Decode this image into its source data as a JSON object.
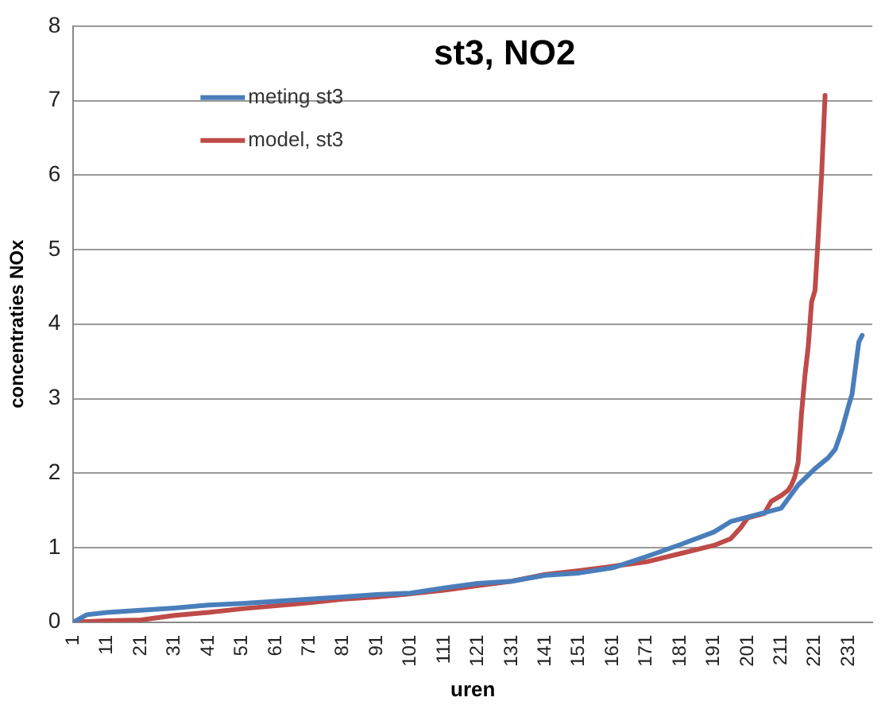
{
  "chart_data": {
    "type": "line",
    "title": "st3, NO2",
    "xlabel": "uren",
    "ylabel": "concentraties NOx",
    "xlim": [
      1,
      238
    ],
    "xticks": [
      1,
      11,
      21,
      31,
      41,
      51,
      61,
      71,
      81,
      91,
      101,
      111,
      121,
      131,
      141,
      151,
      161,
      171,
      181,
      191,
      201,
      211,
      221,
      231
    ],
    "ylim": [
      0,
      8
    ],
    "yticks": [
      0,
      1,
      2,
      3,
      4,
      5,
      6,
      7,
      8
    ],
    "grid": "y",
    "legend": "top left",
    "marker": "none",
    "line_style": "solid",
    "series": [
      {
        "name": "meting st3",
        "color": "#4a7ebb",
        "x": [
          1,
          5,
          11,
          21,
          31,
          41,
          51,
          61,
          71,
          81,
          91,
          101,
          111,
          121,
          131,
          141,
          151,
          161,
          171,
          181,
          191,
          196,
          201,
          211,
          216,
          221,
          225,
          227,
          229,
          231,
          232,
          234,
          235
        ],
        "values": [
          0.0,
          0.1,
          0.13,
          0.16,
          0.19,
          0.23,
          0.25,
          0.28,
          0.31,
          0.34,
          0.37,
          0.39,
          0.46,
          0.52,
          0.55,
          0.63,
          0.66,
          0.73,
          0.88,
          1.04,
          1.21,
          1.35,
          1.41,
          1.53,
          1.84,
          2.06,
          2.21,
          2.32,
          2.58,
          2.91,
          3.06,
          3.76,
          3.85
        ]
      },
      {
        "name": "model, st3",
        "color": "#be4b48",
        "x": [
          1,
          11,
          21,
          31,
          41,
          51,
          61,
          71,
          81,
          91,
          101,
          111,
          121,
          131,
          141,
          151,
          161,
          171,
          181,
          191,
          196,
          199,
          201,
          206,
          208,
          211,
          213,
          214,
          215,
          216,
          217,
          218,
          219,
          220,
          221,
          222,
          223,
          224
        ],
        "values": [
          0.0,
          0.02,
          0.03,
          0.09,
          0.13,
          0.18,
          0.22,
          0.26,
          0.31,
          0.34,
          0.38,
          0.43,
          0.49,
          0.55,
          0.64,
          0.69,
          0.75,
          0.81,
          0.92,
          1.03,
          1.12,
          1.27,
          1.4,
          1.46,
          1.62,
          1.7,
          1.77,
          1.84,
          1.95,
          2.14,
          2.8,
          3.3,
          3.7,
          4.3,
          4.45,
          5.2,
          6.04,
          7.07
        ]
      }
    ]
  }
}
